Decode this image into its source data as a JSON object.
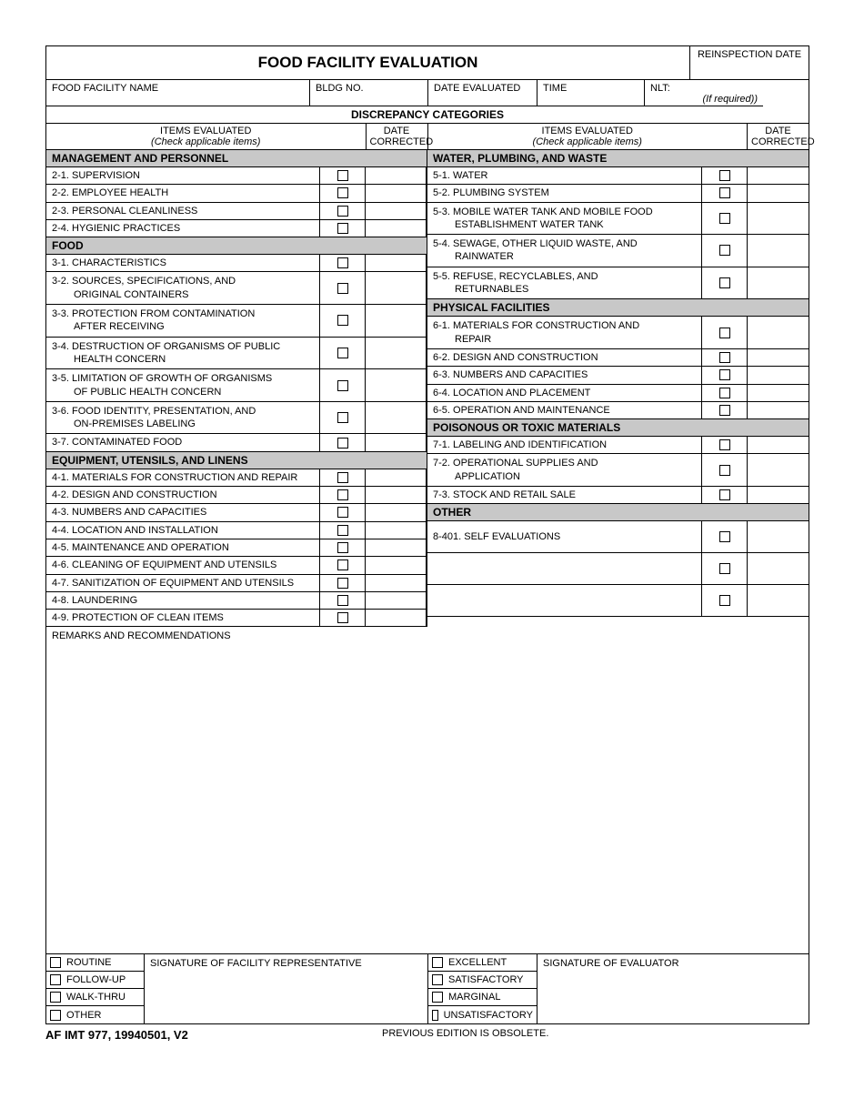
{
  "title": "FOOD FACILITY EVALUATION",
  "header": {
    "reinspection": "REINSPECTION DATE",
    "facility_name": "FOOD FACILITY NAME",
    "bldg_no": "BLDG NO.",
    "date_eval": "DATE EVALUATED",
    "time": "TIME",
    "nlt": "NLT:",
    "if_required": "(If required))"
  },
  "disc_title": "DISCREPANCY CATEGORIES",
  "col_hdrs": {
    "items": "ITEMS EVALUATED",
    "check": "(Check applicable items)",
    "date_corrected": "DATE CORRECTED"
  },
  "sections_left": [
    {
      "hdr": "MANAGEMENT AND PERSONNEL",
      "items": [
        "2-1. SUPERVISION",
        "2-2. EMPLOYEE HEALTH",
        "2-3. PERSONAL CLEANLINESS",
        "2-4. HYGIENIC PRACTICES"
      ]
    },
    {
      "hdr": "FOOD",
      "items": [
        "3-1. CHARACTERISTICS",
        "3-2.  SOURCES, SPECIFICATIONS, AND|ORIGINAL CONTAINERS",
        "3-3.  PROTECTION FROM CONTAMINATION|AFTER RECEIVING",
        "3-4.  DESTRUCTION OF ORGANISMS OF PUBLIC|HEALTH CONCERN",
        "3-5.  LIMITATION OF GROWTH OF ORGANISMS|OF PUBLIC HEALTH CONCERN",
        "3-6.  FOOD IDENTITY, PRESENTATION, AND|ON-PREMISES LABELING",
        "3-7. CONTAMINATED FOOD"
      ]
    },
    {
      "hdr": "EQUIPMENT, UTENSILS, AND LINENS",
      "items": [
        "4-1. MATERIALS FOR CONSTRUCTION AND REPAIR",
        "4-2. DESIGN AND CONSTRUCTION",
        "4-3. NUMBERS AND CAPACITIES",
        "4-4. LOCATION AND INSTALLATION",
        "4-5. MAINTENANCE AND OPERATION",
        "4-6. CLEANING OF EQUIPMENT AND UTENSILS",
        "4-7. SANITIZATION OF EQUIPMENT AND UTENSILS",
        "4-8. LAUNDERING",
        "4-9. PROTECTION OF CLEAN ITEMS"
      ]
    }
  ],
  "sections_right": [
    {
      "hdr": "WATER, PLUMBING, AND WASTE",
      "items": [
        "5-1. WATER",
        "5-2. PLUMBING SYSTEM",
        "5-3.  MOBILE WATER TANK AND MOBILE FOOD|ESTABLISHMENT WATER TANK",
        "5-4.  SEWAGE, OTHER LIQUID WASTE, AND|RAINWATER",
        "5-5.  REFUSE, RECYCLABLES, AND|RETURNABLES"
      ]
    },
    {
      "hdr": "PHYSICAL FACILITIES",
      "items": [
        "6-1.  MATERIALS FOR CONSTRUCTION AND|REPAIR",
        "6-2. DESIGN AND CONSTRUCTION",
        "6-3. NUMBERS AND CAPACITIES",
        "6-4. LOCATION AND PLACEMENT",
        "6-5. OPERATION AND MAINTENANCE"
      ]
    },
    {
      "hdr": "POISONOUS OR TOXIC MATERIALS",
      "items": [
        "7-1. LABELING AND IDENTIFICATION",
        "7-2.  OPERATIONAL SUPPLIES AND|APPLICATION",
        "7-3. STOCK AND RETAIL SALE"
      ]
    },
    {
      "hdr": "OTHER",
      "items": [
        "8-401. SELF EVALUATIONS|~",
        " |~",
        " |~"
      ]
    }
  ],
  "remarks": "REMARKS AND RECOMMENDATIONS",
  "footer": {
    "types": [
      "ROUTINE",
      "FOLLOW-UP",
      "WALK-THRU",
      "OTHER"
    ],
    "sig_rep": "SIGNATURE OF FACILITY REPRESENTATIVE",
    "ratings": [
      "EXCELLENT",
      "SATISFACTORY",
      "MARGINAL",
      "UNSATISFACTORY"
    ],
    "sig_eval": "SIGNATURE OF EVALUATOR"
  },
  "form_id": "AF IMT  977, 19940501, V2",
  "obsolete": "PREVIOUS EDITION IS OBSOLETE."
}
